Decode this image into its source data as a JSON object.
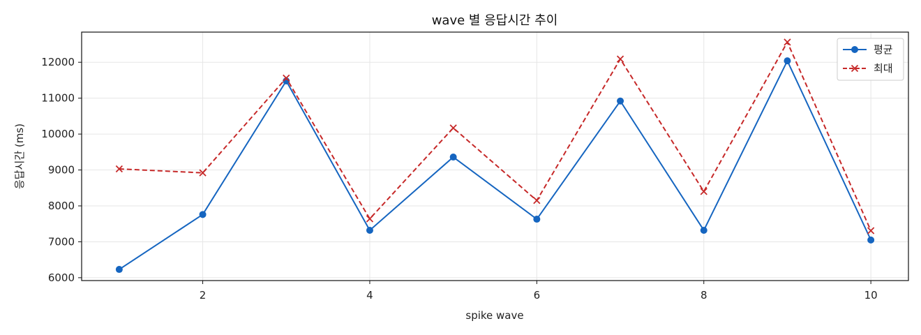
{
  "chart_data": {
    "type": "line",
    "title": "wave 별 응답시간 추이",
    "xlabel": "spike wave",
    "ylabel": "응답시간 (ms)",
    "x": [
      1,
      2,
      3,
      4,
      5,
      6,
      7,
      8,
      9,
      10
    ],
    "xticks": [
      2,
      4,
      6,
      8,
      10
    ],
    "yticks": [
      6000,
      7000,
      8000,
      9000,
      10000,
      11000,
      12000
    ],
    "xlim": [
      0.55,
      10.45
    ],
    "ylim": [
      5920,
      12840
    ],
    "grid": true,
    "legend_position": "top-right",
    "series": [
      {
        "name": "평균",
        "values": [
          6230,
          7760,
          11480,
          7320,
          9360,
          7630,
          10920,
          7320,
          12040,
          7050
        ],
        "color": "#1565c0",
        "marker": "circle",
        "line_style": "solid"
      },
      {
        "name": "최대",
        "values": [
          9030,
          8920,
          11560,
          7640,
          10170,
          8150,
          12090,
          8400,
          12560,
          7310
        ],
        "color": "#c62828",
        "marker": "x",
        "line_style": "dashed"
      }
    ]
  }
}
